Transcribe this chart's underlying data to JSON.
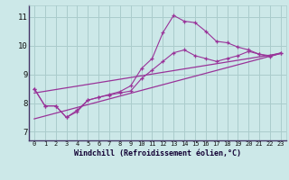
{
  "xlabel": "Windchill (Refroidissement éolien,°C)",
  "x_ticks": [
    0,
    1,
    2,
    3,
    4,
    5,
    6,
    7,
    8,
    9,
    10,
    11,
    12,
    13,
    14,
    15,
    16,
    17,
    18,
    19,
    20,
    21,
    22,
    23
  ],
  "ylim": [
    6.7,
    11.4
  ],
  "xlim": [
    -0.5,
    23.5
  ],
  "yticks": [
    7,
    8,
    9,
    10,
    11
  ],
  "bg_color": "#cce8e8",
  "grid_color": "#aacccc",
  "line_color": "#993399",
  "line_main": {
    "x": [
      0,
      1,
      2,
      3,
      4,
      5,
      6,
      7,
      8,
      9,
      10,
      11,
      12,
      13,
      14,
      15,
      16,
      17,
      18,
      19,
      20,
      21,
      22,
      23
    ],
    "y": [
      8.5,
      7.9,
      7.9,
      7.5,
      7.7,
      8.1,
      8.2,
      8.3,
      8.4,
      8.6,
      9.2,
      9.55,
      10.45,
      11.05,
      10.85,
      10.8,
      10.5,
      10.15,
      10.1,
      9.95,
      9.85,
      9.7,
      9.65,
      9.75
    ]
  },
  "line_secondary": {
    "x": [
      0,
      1,
      2,
      3,
      4,
      5,
      6,
      7,
      8,
      9,
      10,
      11,
      12,
      13,
      14,
      15,
      16,
      17,
      18,
      19,
      20,
      21,
      22,
      23
    ],
    "y": [
      8.5,
      7.9,
      7.9,
      7.5,
      7.75,
      8.1,
      8.2,
      8.28,
      8.35,
      8.42,
      8.85,
      9.15,
      9.45,
      9.75,
      9.85,
      9.65,
      9.55,
      9.45,
      9.55,
      9.65,
      9.8,
      9.7,
      9.62,
      9.73
    ]
  },
  "line_reg1": {
    "x": [
      0,
      23
    ],
    "y": [
      8.35,
      9.73
    ]
  },
  "line_reg2": {
    "x": [
      0,
      23
    ],
    "y": [
      7.45,
      9.73
    ]
  }
}
